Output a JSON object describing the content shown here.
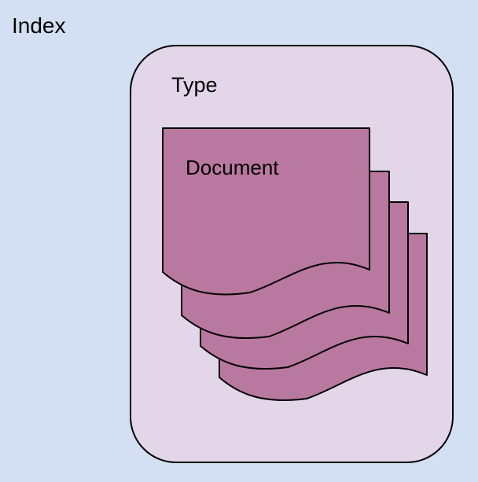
{
  "diagram": {
    "index_label": "Index",
    "type_label": "Type",
    "document_label": "Document"
  },
  "colors": {
    "background": "#d3e0f3",
    "type_box_fill": "#e4d6e9",
    "document_fill": "#b9789f",
    "stroke": "#000000"
  }
}
